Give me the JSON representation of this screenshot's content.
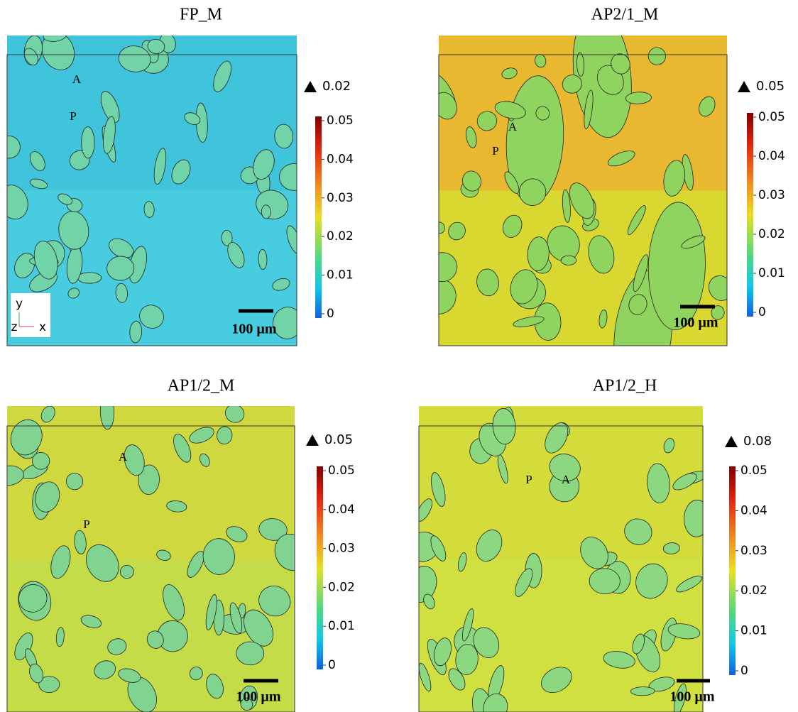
{
  "panels": [
    {
      "title": "FP_M",
      "max": "0.02",
      "colorbar_ticks": [
        "0.05",
        "0.04",
        "0.03",
        "0.02",
        "0.01",
        "0"
      ],
      "labels": [
        "A",
        "P"
      ],
      "scale_bar": "100 µm",
      "axes": [
        "y",
        "z",
        "x"
      ]
    },
    {
      "title": "AP2/1_M",
      "max": "0.05",
      "colorbar_ticks": [
        "0.05",
        "0.04",
        "0.03",
        "0.02",
        "0.01",
        "0"
      ],
      "labels": [
        "A",
        "P"
      ],
      "scale_bar": "100 µm"
    },
    {
      "title": "AP1/2_M",
      "max": "0.05",
      "colorbar_ticks": [
        "0.05",
        "0.04",
        "0.03",
        "0.02",
        "0.01",
        "0"
      ],
      "labels": [
        "A",
        "P"
      ],
      "scale_bar": "100 µm"
    },
    {
      "title": "AP1/2_H",
      "max": "0.08",
      "colorbar_ticks": [
        "0.05",
        "0.04",
        "0.03",
        "0.02",
        "0.01",
        "0"
      ],
      "labels": [
        "P",
        "A"
      ],
      "scale_bar": "100 µm"
    }
  ]
}
